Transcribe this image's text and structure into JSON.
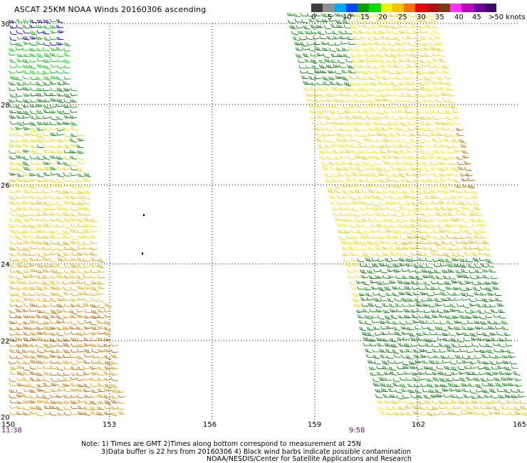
{
  "title": "ASCAT 25KM NOAA Winds 20160306 ascending",
  "scale": {
    "labels": [
      "0",
      "5",
      "10",
      "15",
      "20",
      "25",
      "30",
      "35",
      "40",
      "45",
      ">50 knots"
    ],
    "colors": [
      "#3c3c3c",
      "#909090",
      "#00a8ff",
      "#0048ff",
      "#00a000",
      "#00e000",
      "#f0f000",
      "#f8c000",
      "#f87000",
      "#f00000",
      "#b01010",
      "#7a3a10",
      "#ff30ff",
      "#c000c0",
      "#7000a0",
      "#400070"
    ]
  },
  "axes": {
    "lat_labels": [
      "30",
      "28",
      "26",
      "24",
      "22",
      "20"
    ],
    "lon_labels": [
      "150",
      "153",
      "156",
      "159",
      "162",
      "165"
    ],
    "lon_range": [
      150,
      165
    ],
    "lat_range": [
      20,
      30
    ]
  },
  "passes": [
    {
      "time": "11:38"
    },
    {
      "time": "9:58"
    }
  ],
  "notes": {
    "line1": "Note: 1) Times are GMT 2)Times along bottom correspond to measurement at 25N",
    "line2": "3)Data buffer is 22 hrs from 20160306 4) Black wind barbs indicate possible contamination",
    "line3": "NOAA/NESDIS/Center for Satellite Applications and Research"
  }
}
